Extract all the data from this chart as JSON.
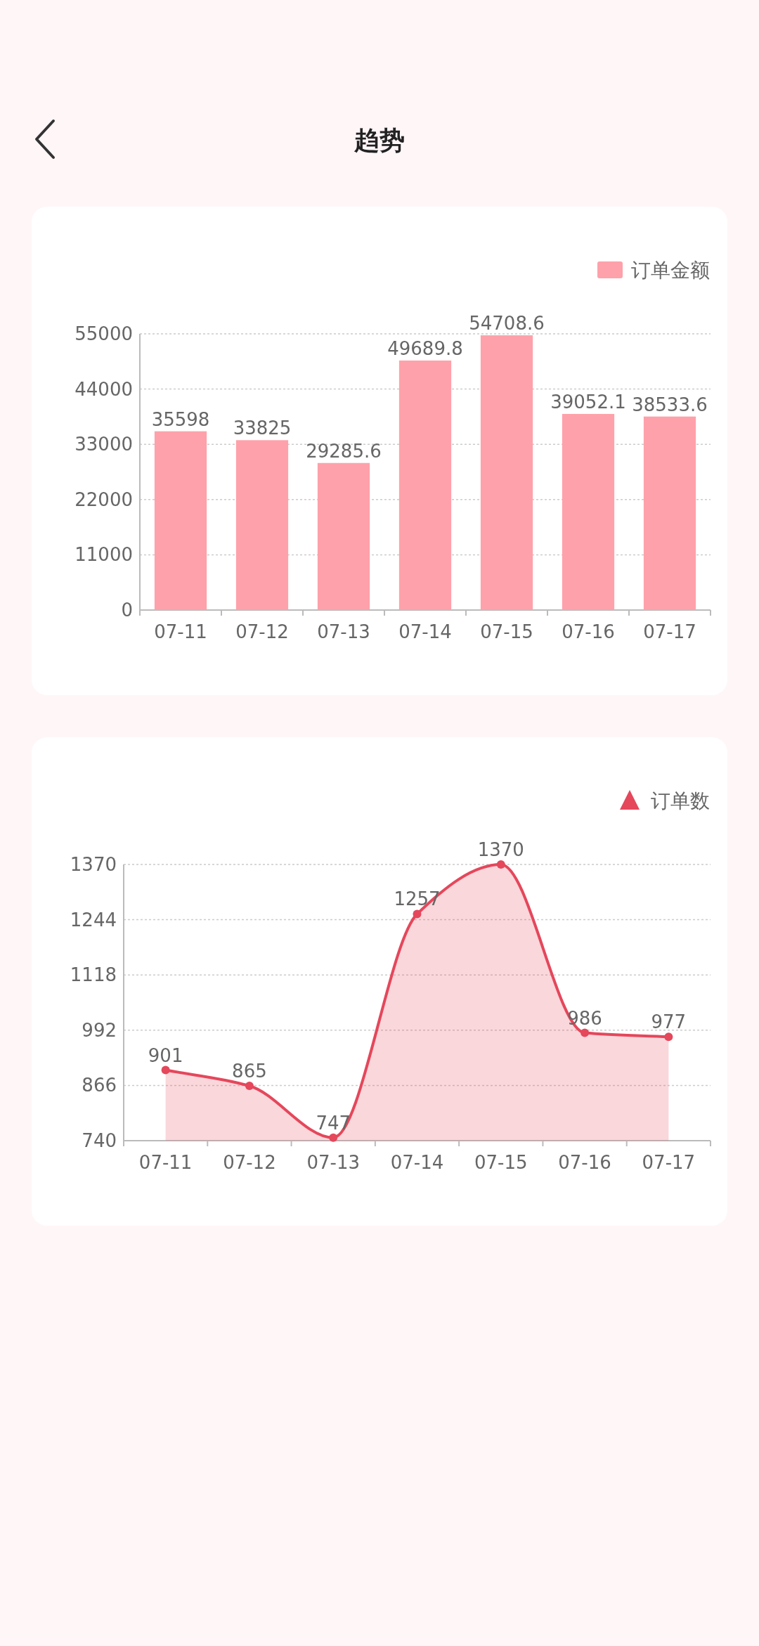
{
  "chart_data": [
    {
      "type": "bar",
      "title": "趋势",
      "categories": [
        "07-11",
        "07-12",
        "07-13",
        "07-14",
        "07-15",
        "07-16",
        "07-17"
      ],
      "series": [
        {
          "name": "订单金额",
          "color": "#ffa1aa",
          "values": [
            35598,
            33825,
            29285.6,
            49689.8,
            54708.6,
            39052.1,
            38533.6
          ]
        }
      ],
      "ylim": [
        0,
        55000
      ],
      "yticks": [
        0,
        11000,
        22000,
        33000,
        44000,
        55000
      ],
      "grid": "y",
      "legend": "top right",
      "data_labels": true
    },
    {
      "type": "area",
      "categories": [
        "07-11",
        "07-12",
        "07-13",
        "07-14",
        "07-15",
        "07-16",
        "07-17"
      ],
      "series": [
        {
          "name": "订单数",
          "color": "#e5475b",
          "values": [
            901,
            865,
            747,
            1257,
            1370,
            986,
            977
          ]
        }
      ],
      "ylim": [
        740,
        1370
      ],
      "yticks": [
        740,
        866,
        992,
        1118,
        1244,
        1370
      ],
      "grid": "y",
      "legend": "top right",
      "data_labels": true,
      "marker": "circle",
      "line_style": "solid"
    }
  ]
}
